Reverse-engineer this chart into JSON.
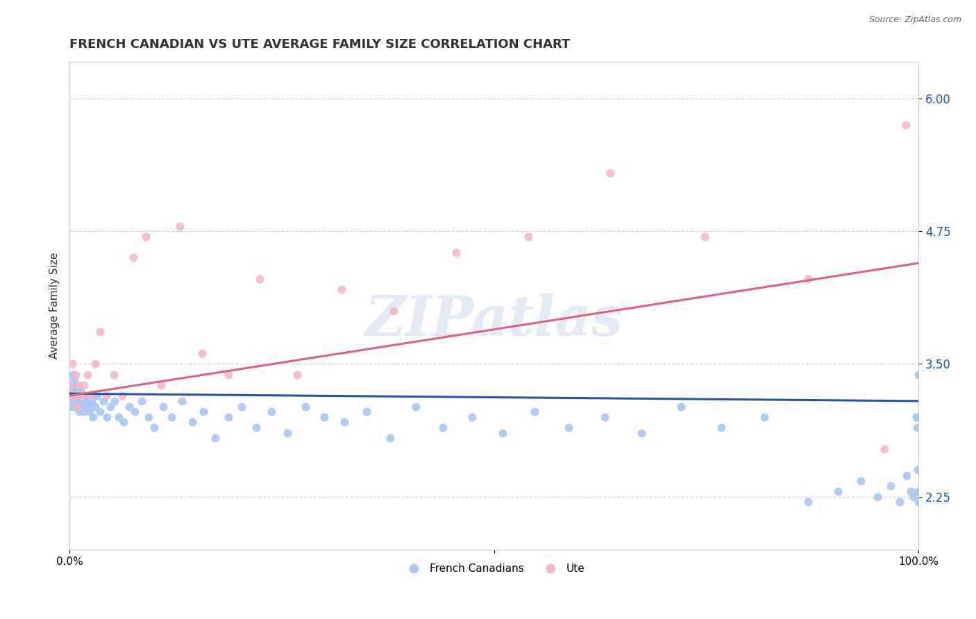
{
  "title": "FRENCH CANADIAN VS UTE AVERAGE FAMILY SIZE CORRELATION CHART",
  "source": "Source: ZipAtlas.com",
  "ylabel": "Average Family Size",
  "yticks": [
    2.25,
    3.5,
    4.75,
    6.0
  ],
  "ymin": 1.75,
  "ymax": 6.35,
  "xmin": 0.0,
  "xmax": 1.0,
  "blue_color": "#a8c8f0",
  "pink_color": "#f4b8c8",
  "blue_line_color": "#2255aa",
  "pink_line_color": "#e06080",
  "watermark": "ZIPatlas",
  "blue_intercept": 3.22,
  "blue_slope": -0.07,
  "pink_intercept": 3.2,
  "pink_slope": 1.25,
  "blue_x": [
    0.002,
    0.003,
    0.003,
    0.004,
    0.004,
    0.005,
    0.005,
    0.006,
    0.006,
    0.007,
    0.007,
    0.008,
    0.008,
    0.009,
    0.009,
    0.01,
    0.01,
    0.011,
    0.011,
    0.012,
    0.012,
    0.013,
    0.014,
    0.015,
    0.016,
    0.017,
    0.018,
    0.019,
    0.02,
    0.021,
    0.022,
    0.024,
    0.026,
    0.028,
    0.03,
    0.033,
    0.036,
    0.04,
    0.044,
    0.048,
    0.053,
    0.058,
    0.064,
    0.07,
    0.077,
    0.085,
    0.093,
    0.1,
    0.11,
    0.12,
    0.132,
    0.145,
    0.158,
    0.172,
    0.187,
    0.203,
    0.22,
    0.238,
    0.257,
    0.278,
    0.3,
    0.324,
    0.35,
    0.378,
    0.408,
    0.44,
    0.474,
    0.51,
    0.548,
    0.588,
    0.63,
    0.674,
    0.72,
    0.768,
    0.818,
    0.87,
    0.905,
    0.932,
    0.952,
    0.967,
    0.978,
    0.986,
    0.991,
    0.994,
    0.997,
    0.998,
    0.999,
    0.999,
    0.999,
    1.0,
    1.0
  ],
  "blue_y": [
    3.2,
    3.3,
    3.1,
    3.25,
    3.4,
    3.15,
    3.3,
    3.2,
    3.35,
    3.25,
    3.1,
    3.2,
    3.3,
    3.15,
    3.25,
    3.1,
    3.2,
    3.05,
    3.15,
    3.2,
    3.1,
    3.25,
    3.15,
    3.2,
    3.1,
    3.05,
    3.15,
    3.1,
    3.2,
    3.15,
    3.1,
    3.05,
    3.15,
    3.0,
    3.1,
    3.2,
    3.05,
    3.15,
    3.0,
    3.1,
    3.15,
    3.0,
    2.95,
    3.1,
    3.05,
    3.15,
    3.0,
    2.9,
    3.1,
    3.0,
    3.15,
    2.95,
    3.05,
    2.8,
    3.0,
    3.1,
    2.9,
    3.05,
    2.85,
    3.1,
    3.0,
    2.95,
    3.05,
    2.8,
    3.1,
    2.9,
    3.0,
    2.85,
    3.05,
    2.9,
    3.0,
    2.85,
    3.1,
    2.9,
    3.0,
    2.2,
    2.3,
    2.4,
    2.25,
    2.35,
    2.2,
    2.45,
    2.3,
    2.25,
    3.0,
    2.9,
    3.0,
    2.5,
    2.3,
    2.2,
    3.4
  ],
  "pink_x": [
    0.001,
    0.003,
    0.005,
    0.007,
    0.009,
    0.011,
    0.014,
    0.017,
    0.021,
    0.025,
    0.03,
    0.036,
    0.043,
    0.052,
    0.062,
    0.075,
    0.09,
    0.108,
    0.13,
    0.156,
    0.187,
    0.224,
    0.268,
    0.32,
    0.382,
    0.455,
    0.54,
    0.637,
    0.748,
    0.87,
    0.96,
    0.985
  ],
  "pink_y": [
    3.3,
    3.5,
    3.2,
    3.4,
    3.1,
    3.3,
    3.2,
    3.3,
    3.4,
    3.2,
    3.5,
    3.8,
    3.2,
    3.4,
    3.2,
    4.5,
    4.7,
    3.3,
    4.8,
    3.6,
    3.4,
    4.3,
    3.4,
    4.2,
    4.0,
    4.55,
    4.7,
    5.3,
    4.7,
    4.3,
    2.7,
    5.75
  ]
}
